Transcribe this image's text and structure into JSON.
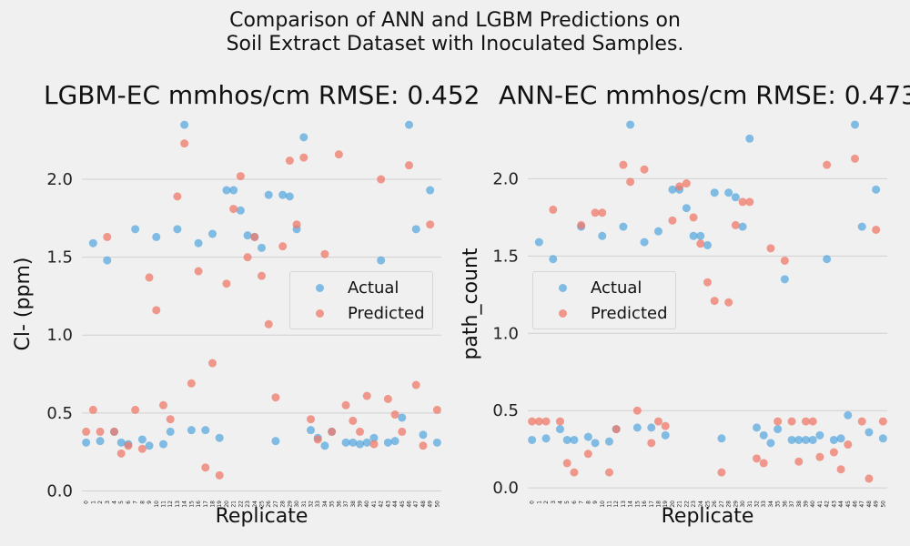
{
  "title_line1": "Comparison of ANN and LGBM Predictions on",
  "title_line2": "Soil Extract Dataset with Inoculated Samples.",
  "colors": {
    "actual": "#3498db",
    "predicted": "#f07a6a",
    "background": "#f0f0f0",
    "grid": "#d0d0d0"
  },
  "chart_data": [
    {
      "type": "scatter",
      "title": "LGBM-EC mmhos/cm RMSE: 0.452",
      "xlabel": "Replicate",
      "ylabel": "Cl- (ppm)",
      "ylim": [
        -0.05,
        2.45
      ],
      "yticks": [
        "0.0",
        "0.5",
        "1.0",
        "1.5",
        "2.0"
      ],
      "xticks": [
        "0",
        "1",
        "2",
        "3",
        "4",
        "5",
        "6",
        "7",
        "8",
        "9",
        "10",
        "11",
        "12",
        "13",
        "14",
        "15",
        "16",
        "17",
        "18",
        "19",
        "20",
        "21",
        "22",
        "23",
        "24",
        "25",
        "26",
        "27",
        "28",
        "29",
        "30",
        "31",
        "32",
        "33",
        "34",
        "35",
        "36",
        "37",
        "38",
        "39",
        "40",
        "41",
        "42",
        "43",
        "44",
        "45",
        "46",
        "47",
        "48",
        "49",
        "50"
      ],
      "grid": true,
      "legend": {
        "placement": "center-right",
        "entries": [
          "Actual",
          "Predicted"
        ]
      },
      "series": [
        {
          "name": "Actual",
          "values": [
            0.31,
            1.59,
            0.32,
            1.48,
            0.38,
            0.31,
            0.3,
            1.68,
            0.33,
            0.29,
            1.63,
            0.3,
            0.38,
            1.68,
            2.35,
            0.39,
            1.59,
            0.39,
            1.65,
            0.34,
            1.93,
            1.93,
            1.8,
            1.64,
            1.63,
            1.56,
            1.9,
            0.32,
            1.9,
            1.89,
            1.68,
            2.27,
            0.39,
            0.34,
            0.29,
            0.38,
            1.35,
            0.31,
            0.31,
            0.3,
            0.31,
            0.34,
            1.48,
            0.31,
            0.32,
            0.47,
            2.35,
            1.68,
            0.36,
            1.93,
            0.31
          ]
        },
        {
          "name": "Predicted",
          "values": [
            0.38,
            0.52,
            0.38,
            1.63,
            0.38,
            0.24,
            0.29,
            0.52,
            0.27,
            1.37,
            1.16,
            0.55,
            0.46,
            1.89,
            2.23,
            0.69,
            1.41,
            0.15,
            0.82,
            0.1,
            1.33,
            1.81,
            2.02,
            1.5,
            1.63,
            1.38,
            1.07,
            0.6,
            1.57,
            2.12,
            1.71,
            2.14,
            0.46,
            0.33,
            1.52,
            0.38,
            2.16,
            0.55,
            0.45,
            0.38,
            0.61,
            0.3,
            2.0,
            0.59,
            0.49,
            0.38,
            2.09,
            0.68,
            0.29,
            1.71,
            0.52
          ]
        }
      ]
    },
    {
      "type": "scatter",
      "title": "ANN-EC mmhos/cm RMSE: 0.473",
      "xlabel": "Replicate",
      "ylabel": "path_count",
      "ylim": [
        -0.07,
        2.45
      ],
      "yticks": [
        "0.0",
        "0.5",
        "1.0",
        "1.5",
        "2.0"
      ],
      "xticks": [
        "0",
        "1",
        "2",
        "3",
        "4",
        "5",
        "6",
        "7",
        "8",
        "9",
        "10",
        "11",
        "12",
        "13",
        "14",
        "15",
        "16",
        "17",
        "18",
        "19",
        "20",
        "21",
        "22",
        "23",
        "24",
        "25",
        "26",
        "27",
        "28",
        "29",
        "30",
        "31",
        "32",
        "33",
        "34",
        "35",
        "36",
        "37",
        "38",
        "39",
        "40",
        "41",
        "42",
        "43",
        "44",
        "45",
        "46",
        "47",
        "48",
        "49",
        "50"
      ],
      "grid": true,
      "legend": {
        "placement": "center-left",
        "entries": [
          "Actual",
          "Predicted"
        ]
      },
      "series": [
        {
          "name": "Actual",
          "values": [
            0.31,
            1.59,
            0.32,
            1.48,
            0.38,
            0.31,
            0.31,
            1.69,
            0.33,
            0.29,
            1.63,
            0.3,
            0.38,
            1.69,
            2.35,
            0.39,
            1.59,
            0.39,
            1.66,
            0.34,
            1.93,
            1.93,
            1.81,
            1.63,
            1.63,
            1.57,
            1.91,
            0.32,
            1.91,
            1.88,
            1.69,
            2.26,
            0.39,
            0.34,
            0.29,
            0.38,
            1.35,
            0.31,
            0.31,
            0.31,
            0.31,
            0.34,
            1.48,
            0.31,
            0.32,
            0.47,
            2.35,
            1.69,
            0.36,
            1.93,
            0.32
          ]
        },
        {
          "name": "Predicted",
          "values": [
            0.43,
            0.43,
            0.43,
            1.8,
            0.43,
            0.16,
            0.1,
            1.7,
            0.22,
            1.78,
            1.78,
            0.1,
            0.38,
            2.09,
            1.98,
            0.5,
            2.06,
            0.29,
            0.43,
            0.4,
            1.73,
            1.95,
            1.97,
            1.75,
            1.58,
            1.33,
            1.21,
            0.1,
            1.2,
            1.7,
            1.85,
            1.85,
            0.19,
            0.16,
            1.55,
            0.43,
            1.47,
            0.43,
            0.17,
            0.43,
            0.43,
            0.2,
            2.09,
            0.23,
            0.12,
            0.28,
            2.13,
            0.43,
            0.06,
            1.67,
            0.43
          ]
        }
      ]
    }
  ]
}
